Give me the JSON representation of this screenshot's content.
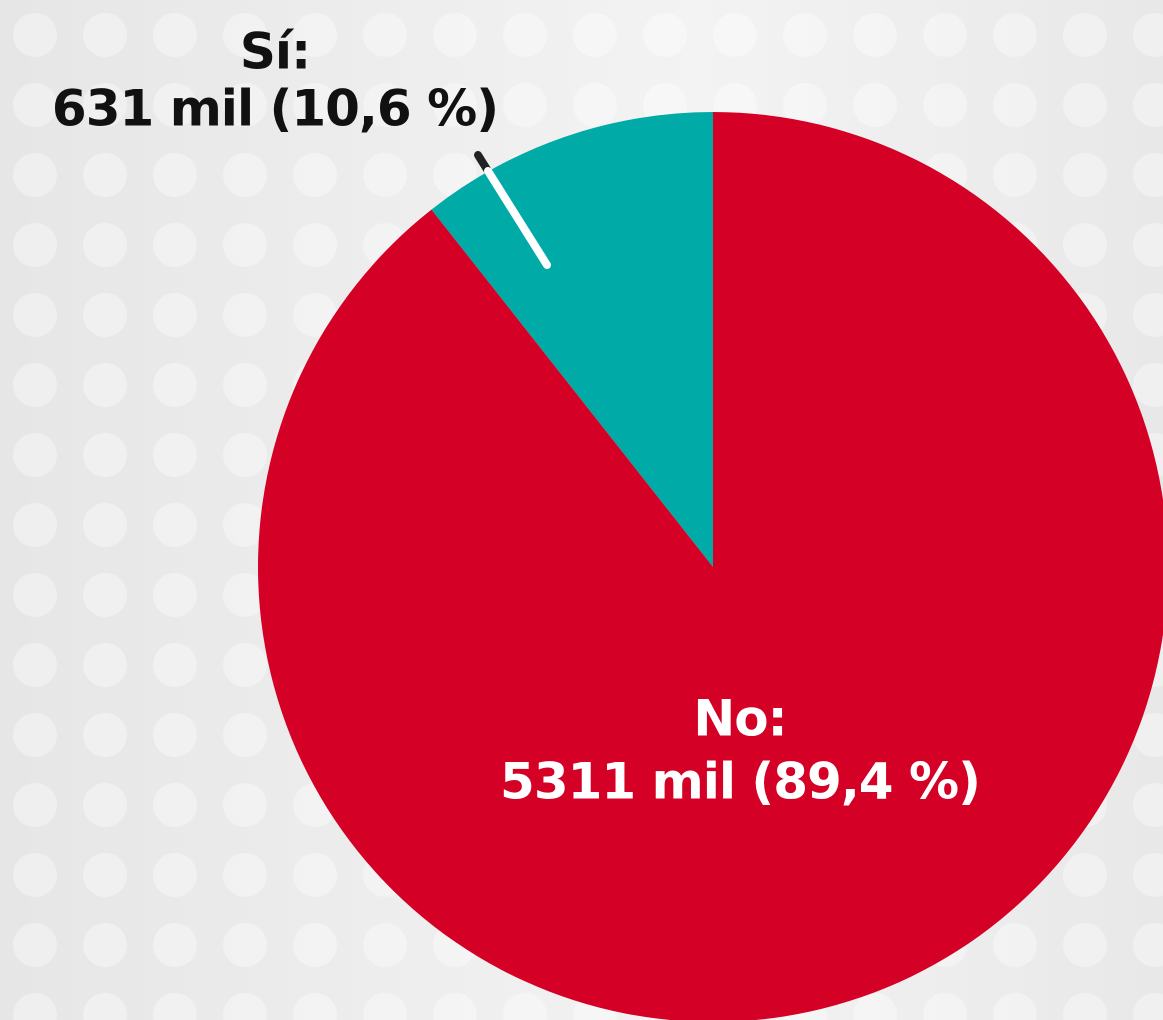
{
  "chart_data": {
    "type": "pie",
    "categories": [
      "Sí:",
      "No:"
    ],
    "values": [
      631,
      5311
    ],
    "value_labels": [
      "631 mil (10,6 %)",
      "5311 mil (89,4 %)"
    ],
    "colors": [
      "#00aaa6",
      "#d40026"
    ]
  }
}
